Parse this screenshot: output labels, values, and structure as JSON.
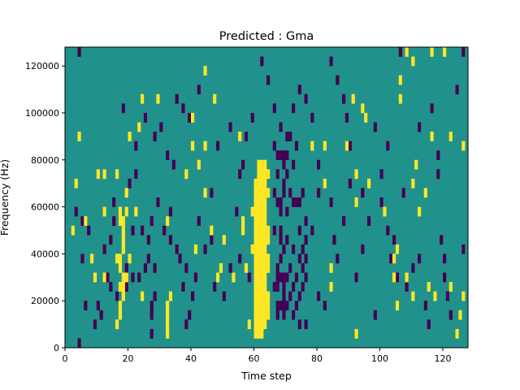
{
  "chart_data": {
    "type": "heatmap",
    "title": "Predicted : Gma",
    "xlabel": "Time step",
    "ylabel": "Frequency (Hz)",
    "xlim": [
      0,
      128
    ],
    "ylim": [
      0,
      128000
    ],
    "x_ticks": [
      0,
      20,
      40,
      60,
      80,
      100,
      120
    ],
    "y_ticks": [
      0,
      20000,
      40000,
      60000,
      80000,
      100000,
      120000
    ],
    "x_tick_labels": [
      "0",
      "20",
      "40",
      "60",
      "80",
      "100",
      "120"
    ],
    "y_tick_labels": [
      "0",
      "20000",
      "40000",
      "60000",
      "80000",
      "100000",
      "120000"
    ],
    "grid": false,
    "colors": {
      "background": "#21918c",
      "high": "#fde725",
      "low": "#440154"
    },
    "background_value": 0,
    "row_height_hz": 4000,
    "cell_values": {
      "high": 1,
      "low": -1
    },
    "cells_high": [
      [
        60,
        4000
      ],
      [
        60,
        8000
      ],
      [
        60,
        12000
      ],
      [
        60,
        16000
      ],
      [
        60,
        20000
      ],
      [
        60,
        24000
      ],
      [
        60,
        28000
      ],
      [
        60,
        32000
      ],
      [
        60,
        36000
      ],
      [
        60,
        40000
      ],
      [
        60,
        44000
      ],
      [
        60,
        48000
      ],
      [
        60,
        52000
      ],
      [
        60,
        56000
      ],
      [
        60,
        60000
      ],
      [
        60,
        64000
      ],
      [
        60,
        68000
      ],
      [
        61,
        4000
      ],
      [
        61,
        8000
      ],
      [
        61,
        12000
      ],
      [
        61,
        16000
      ],
      [
        61,
        20000
      ],
      [
        61,
        24000
      ],
      [
        61,
        28000
      ],
      [
        61,
        32000
      ],
      [
        61,
        36000
      ],
      [
        61,
        40000
      ],
      [
        61,
        44000
      ],
      [
        61,
        48000
      ],
      [
        61,
        52000
      ],
      [
        61,
        56000
      ],
      [
        61,
        60000
      ],
      [
        61,
        64000
      ],
      [
        61,
        68000
      ],
      [
        61,
        72000
      ],
      [
        61,
        76000
      ],
      [
        62,
        4000
      ],
      [
        62,
        8000
      ],
      [
        62,
        12000
      ],
      [
        62,
        16000
      ],
      [
        62,
        20000
      ],
      [
        62,
        24000
      ],
      [
        62,
        28000
      ],
      [
        62,
        32000
      ],
      [
        62,
        36000
      ],
      [
        62,
        40000
      ],
      [
        62,
        44000
      ],
      [
        62,
        48000
      ],
      [
        62,
        52000
      ],
      [
        62,
        56000
      ],
      [
        62,
        60000
      ],
      [
        62,
        64000
      ],
      [
        62,
        68000
      ],
      [
        62,
        72000
      ],
      [
        62,
        76000
      ],
      [
        63,
        8000
      ],
      [
        63,
        12000
      ],
      [
        63,
        16000
      ],
      [
        63,
        20000
      ],
      [
        63,
        24000
      ],
      [
        63,
        28000
      ],
      [
        63,
        32000
      ],
      [
        63,
        36000
      ],
      [
        63,
        40000
      ],
      [
        63,
        44000
      ],
      [
        63,
        48000
      ],
      [
        63,
        52000
      ],
      [
        63,
        56000
      ],
      [
        63,
        60000
      ],
      [
        63,
        64000
      ],
      [
        63,
        68000
      ],
      [
        63,
        72000
      ],
      [
        63,
        76000
      ],
      [
        64,
        12000
      ],
      [
        64,
        16000
      ],
      [
        64,
        20000
      ],
      [
        64,
        32000
      ],
      [
        64,
        36000
      ],
      [
        64,
        44000
      ],
      [
        64,
        48000
      ],
      [
        64,
        64000
      ],
      [
        64,
        72000
      ],
      [
        17,
        12000
      ],
      [
        17,
        16000
      ],
      [
        17,
        24000
      ],
      [
        17,
        32000
      ],
      [
        17,
        36000
      ],
      [
        17,
        52000
      ],
      [
        17,
        56000
      ],
      [
        18,
        20000
      ],
      [
        18,
        24000
      ],
      [
        18,
        28000
      ],
      [
        18,
        40000
      ],
      [
        18,
        44000
      ],
      [
        18,
        48000
      ],
      [
        18,
        52000
      ],
      [
        16,
        8000
      ],
      [
        16,
        36000
      ],
      [
        16,
        72000
      ],
      [
        19,
        56000
      ],
      [
        19,
        64000
      ],
      [
        19,
        28000
      ],
      [
        32,
        4000
      ],
      [
        32,
        8000
      ],
      [
        32,
        12000
      ],
      [
        32,
        16000
      ],
      [
        33,
        20000
      ],
      [
        32,
        52000
      ],
      [
        12,
        28000
      ],
      [
        12,
        56000
      ],
      [
        10,
        72000
      ],
      [
        12,
        72000
      ],
      [
        20,
        36000
      ],
      [
        20,
        88000
      ],
      [
        22,
        56000
      ],
      [
        24,
        20000
      ],
      [
        3,
        68000
      ],
      [
        4,
        88000
      ],
      [
        8,
        36000
      ],
      [
        9,
        28000
      ],
      [
        2,
        48000
      ],
      [
        6,
        52000
      ],
      [
        38,
        72000
      ],
      [
        41,
        40000
      ],
      [
        44,
        64000
      ],
      [
        44,
        84000
      ],
      [
        46,
        48000
      ],
      [
        48,
        28000
      ],
      [
        49,
        32000
      ],
      [
        50,
        44000
      ],
      [
        53,
        28000
      ],
      [
        55,
        88000
      ],
      [
        56,
        48000
      ],
      [
        56,
        52000
      ],
      [
        58,
        8000
      ],
      [
        57,
        32000
      ],
      [
        59,
        56000
      ],
      [
        59,
        40000
      ],
      [
        40,
        96000
      ],
      [
        44,
        116000
      ],
      [
        47,
        104000
      ],
      [
        29,
        104000
      ],
      [
        24,
        104000
      ],
      [
        23,
        92000
      ],
      [
        40,
        84000
      ],
      [
        42,
        76000
      ],
      [
        78,
        84000
      ],
      [
        82,
        68000
      ],
      [
        82,
        84000
      ],
      [
        84,
        24000
      ],
      [
        84,
        32000
      ],
      [
        89,
        84000
      ],
      [
        91,
        104000
      ],
      [
        92,
        72000
      ],
      [
        92,
        60000
      ],
      [
        92,
        4000
      ],
      [
        94,
        100000
      ],
      [
        95,
        96000
      ],
      [
        96,
        68000
      ],
      [
        101,
        56000
      ],
      [
        104,
        28000
      ],
      [
        104,
        36000
      ],
      [
        105,
        16000
      ],
      [
        105,
        40000
      ],
      [
        106,
        104000
      ],
      [
        106,
        112000
      ],
      [
        108,
        28000
      ],
      [
        110,
        20000
      ],
      [
        110,
        68000
      ],
      [
        111,
        76000
      ],
      [
        112,
        56000
      ],
      [
        114,
        64000
      ],
      [
        115,
        24000
      ],
      [
        116,
        88000
      ],
      [
        117,
        20000
      ],
      [
        122,
        88000
      ],
      [
        122,
        24000
      ],
      [
        124,
        4000
      ],
      [
        125,
        12000
      ],
      [
        126,
        84000
      ],
      [
        126,
        20000
      ],
      [
        110,
        120000
      ],
      [
        108,
        124000
      ],
      [
        116,
        124000
      ],
      [
        120,
        124000
      ]
    ],
    "cells_low": [
      [
        67,
        12000
      ],
      [
        67,
        16000
      ],
      [
        67,
        24000
      ],
      [
        67,
        28000
      ],
      [
        67,
        32000
      ],
      [
        67,
        60000
      ],
      [
        67,
        72000
      ],
      [
        67,
        80000
      ],
      [
        68,
        16000
      ],
      [
        68,
        28000
      ],
      [
        68,
        36000
      ],
      [
        68,
        44000
      ],
      [
        68,
        48000
      ],
      [
        68,
        56000
      ],
      [
        68,
        60000
      ],
      [
        68,
        80000
      ],
      [
        69,
        12000
      ],
      [
        69,
        16000
      ],
      [
        69,
        20000
      ],
      [
        69,
        24000
      ],
      [
        69,
        28000
      ],
      [
        69,
        40000
      ],
      [
        69,
        64000
      ],
      [
        69,
        68000
      ],
      [
        69,
        76000
      ],
      [
        69,
        80000
      ],
      [
        70,
        16000
      ],
      [
        70,
        28000
      ],
      [
        70,
        44000
      ],
      [
        70,
        56000
      ],
      [
        70,
        72000
      ],
      [
        70,
        80000
      ],
      [
        71,
        20000
      ],
      [
        71,
        32000
      ],
      [
        71,
        64000
      ],
      [
        71,
        88000
      ],
      [
        72,
        12000
      ],
      [
        72,
        24000
      ],
      [
        72,
        40000
      ],
      [
        72,
        60000
      ],
      [
        72,
        76000
      ],
      [
        73,
        16000
      ],
      [
        73,
        28000
      ],
      [
        73,
        60000
      ],
      [
        73,
        84000
      ],
      [
        74,
        8000
      ],
      [
        74,
        20000
      ],
      [
        74,
        36000
      ],
      [
        74,
        48000
      ],
      [
        74,
        60000
      ],
      [
        75,
        24000
      ],
      [
        75,
        32000
      ],
      [
        75,
        40000
      ],
      [
        75,
        64000
      ],
      [
        76,
        8000
      ],
      [
        76,
        28000
      ],
      [
        76,
        36000
      ],
      [
        76,
        44000
      ],
      [
        76,
        52000
      ],
      [
        66,
        48000
      ],
      [
        66,
        24000
      ],
      [
        66,
        64000
      ],
      [
        66,
        84000
      ],
      [
        3,
        56000
      ],
      [
        4,
        0
      ],
      [
        5,
        52000
      ],
      [
        7,
        48000
      ],
      [
        9,
        8000
      ],
      [
        10,
        16000
      ],
      [
        11,
        12000
      ],
      [
        12,
        40000
      ],
      [
        14,
        24000
      ],
      [
        15,
        52000
      ],
      [
        19,
        24000
      ],
      [
        19,
        32000
      ],
      [
        21,
        28000
      ],
      [
        21,
        48000
      ],
      [
        22,
        72000
      ],
      [
        23,
        28000
      ],
      [
        24,
        48000
      ],
      [
        25,
        32000
      ],
      [
        26,
        44000
      ],
      [
        26,
        36000
      ],
      [
        27,
        12000
      ],
      [
        27,
        4000
      ],
      [
        27,
        16000
      ],
      [
        27,
        52000
      ],
      [
        28,
        32000
      ],
      [
        28,
        20000
      ],
      [
        29,
        60000
      ],
      [
        31,
        48000
      ],
      [
        33,
        56000
      ],
      [
        33,
        44000
      ],
      [
        34,
        76000
      ],
      [
        35,
        40000
      ],
      [
        36,
        36000
      ],
      [
        37,
        24000
      ],
      [
        38,
        32000
      ],
      [
        38,
        8000
      ],
      [
        39,
        12000
      ],
      [
        40,
        20000
      ],
      [
        41,
        28000
      ],
      [
        42,
        52000
      ],
      [
        44,
        40000
      ],
      [
        46,
        64000
      ],
      [
        46,
        44000
      ],
      [
        47,
        24000
      ],
      [
        48,
        84000
      ],
      [
        50,
        20000
      ],
      [
        52,
        32000
      ],
      [
        54,
        56000
      ],
      [
        55,
        36000
      ],
      [
        58,
        28000
      ],
      [
        55,
        72000
      ],
      [
        52,
        92000
      ],
      [
        56,
        76000
      ],
      [
        57,
        88000
      ],
      [
        59,
        96000
      ],
      [
        62,
        120000
      ],
      [
        64,
        112000
      ],
      [
        66,
        100000
      ],
      [
        68,
        92000
      ],
      [
        70,
        88000
      ],
      [
        72,
        100000
      ],
      [
        74,
        108000
      ],
      [
        76,
        104000
      ],
      [
        78,
        96000
      ],
      [
        80,
        76000
      ],
      [
        80,
        20000
      ],
      [
        82,
        16000
      ],
      [
        84,
        60000
      ],
      [
        85,
        44000
      ],
      [
        86,
        36000
      ],
      [
        88,
        52000
      ],
      [
        88,
        104000
      ],
      [
        89,
        96000
      ],
      [
        90,
        68000
      ],
      [
        90,
        84000
      ],
      [
        92,
        28000
      ],
      [
        94,
        64000
      ],
      [
        94,
        40000
      ],
      [
        96,
        52000
      ],
      [
        98,
        12000
      ],
      [
        100,
        72000
      ],
      [
        100,
        60000
      ],
      [
        102,
        48000
      ],
      [
        103,
        36000
      ],
      [
        104,
        44000
      ],
      [
        105,
        28000
      ],
      [
        107,
        64000
      ],
      [
        108,
        24000
      ],
      [
        110,
        32000
      ],
      [
        112,
        36000
      ],
      [
        114,
        16000
      ],
      [
        115,
        8000
      ],
      [
        116,
        100000
      ],
      [
        118,
        72000
      ],
      [
        119,
        44000
      ],
      [
        120,
        36000
      ],
      [
        120,
        28000
      ],
      [
        121,
        20000
      ],
      [
        122,
        12000
      ],
      [
        124,
        108000
      ],
      [
        126,
        40000
      ],
      [
        126,
        124000
      ],
      [
        4,
        124000
      ],
      [
        5,
        36000
      ],
      [
        6,
        16000
      ],
      [
        13,
        28000
      ],
      [
        14,
        44000
      ],
      [
        15,
        60000
      ],
      [
        16,
        20000
      ],
      [
        18,
        100000
      ],
      [
        20,
        68000
      ],
      [
        22,
        84000
      ],
      [
        25,
        96000
      ],
      [
        28,
        88000
      ],
      [
        30,
        92000
      ],
      [
        32,
        80000
      ],
      [
        35,
        104000
      ],
      [
        37,
        100000
      ],
      [
        39,
        96000
      ],
      [
        42,
        108000
      ],
      [
        106,
        124000
      ],
      [
        112,
        92000
      ],
      [
        118,
        80000
      ],
      [
        102,
        84000
      ],
      [
        98,
        92000
      ],
      [
        86,
        112000
      ],
      [
        84,
        120000
      ],
      [
        80,
        64000
      ],
      [
        78,
        48000
      ]
    ]
  }
}
